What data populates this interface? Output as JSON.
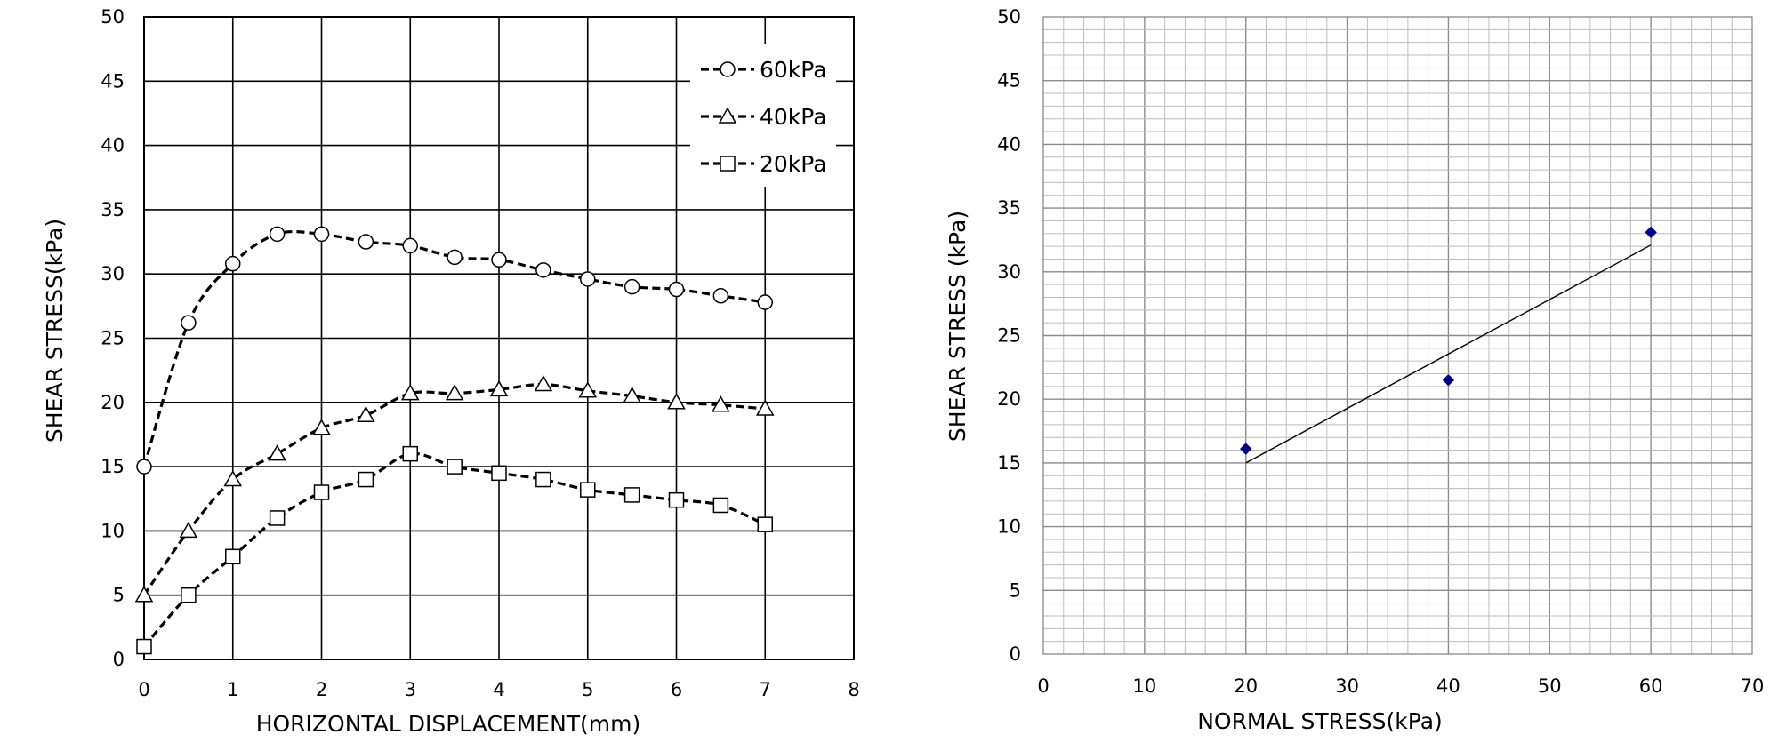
{
  "chart_data": [
    {
      "type": "line",
      "title": "",
      "xlabel": "HORIZONTAL DISPLACEMENT(mm)",
      "ylabel": "SHEAR STRESS(kPa)",
      "xlim": [
        0,
        8
      ],
      "ylim": [
        0,
        50
      ],
      "xticks": [
        "0",
        "1",
        "2",
        "3",
        "4",
        "5",
        "6",
        "7",
        "8"
      ],
      "yticks": [
        "0",
        "5",
        "10",
        "15",
        "20",
        "25",
        "30",
        "35",
        "40",
        "45",
        "50"
      ],
      "grid": true,
      "legend_position": "top-right",
      "series": [
        {
          "name": "60kPa",
          "marker": "circle",
          "x": [
            0,
            0.5,
            1,
            1.5,
            2,
            2.5,
            3,
            3.5,
            4,
            4.5,
            5,
            5.5,
            6,
            6.5,
            7
          ],
          "values": [
            15,
            26.2,
            30.8,
            33.1,
            33.1,
            32.5,
            32.2,
            31.3,
            31.1,
            30.3,
            29.6,
            29.0,
            28.8,
            28.3,
            27.8
          ]
        },
        {
          "name": "40kPa",
          "marker": "triangle",
          "x": [
            0,
            0.5,
            1,
            1.5,
            2,
            2.5,
            3,
            3.5,
            4,
            4.5,
            5,
            5.5,
            6,
            6.5,
            7
          ],
          "values": [
            5,
            10,
            14,
            16,
            18,
            19,
            20.7,
            20.7,
            21.0,
            21.4,
            20.9,
            20.5,
            20.0,
            19.8,
            19.5
          ]
        },
        {
          "name": "20kPa",
          "marker": "square",
          "x": [
            0,
            0.5,
            1,
            1.5,
            2,
            2.5,
            3,
            3.5,
            4,
            4.5,
            5,
            5.5,
            6,
            6.5,
            7
          ],
          "values": [
            1,
            5,
            8,
            11,
            13,
            14,
            16,
            15,
            14.5,
            14,
            13.2,
            12.8,
            12.4,
            12.0,
            10.5
          ]
        }
      ]
    },
    {
      "type": "scatter",
      "title": "",
      "xlabel": "NORMAL STRESS(kPa)",
      "ylabel": "SHEAR STRESS (kPa)",
      "xlim": [
        0,
        70
      ],
      "ylim": [
        0,
        50
      ],
      "xticks": [
        "0",
        "10",
        "20",
        "30",
        "40",
        "50",
        "60",
        "70"
      ],
      "yticks": [
        "0",
        "5",
        "10",
        "15",
        "20",
        "25",
        "30",
        "35",
        "40",
        "45",
        "50"
      ],
      "grid": true,
      "points": {
        "x": [
          20,
          40,
          60
        ],
        "y": [
          16.1,
          21.5,
          33.1
        ],
        "color": "#000080"
      },
      "fit_line": {
        "x": [
          20,
          60
        ],
        "y": [
          15.0,
          32.1
        ]
      }
    }
  ]
}
